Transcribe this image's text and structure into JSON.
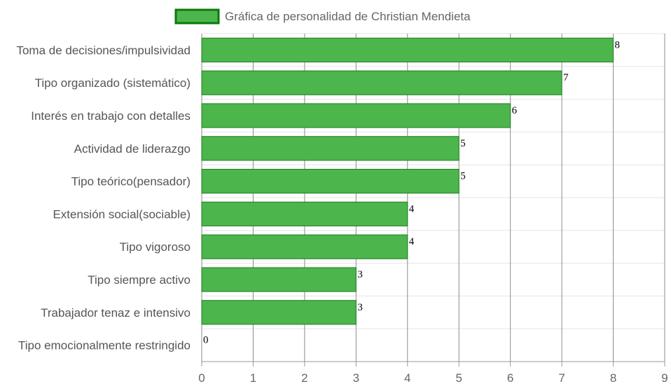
{
  "chart_data": {
    "type": "bar",
    "orientation": "horizontal",
    "legend": {
      "label": "Gráfica de personalidad de Christian Mendieta",
      "position": "top"
    },
    "categories": [
      "Toma de decisiones/impulsividad",
      "Tipo organizado (sistemático)",
      "Interés en trabajo con detalles",
      "Actividad de liderazgo",
      "Tipo teórico(pensador)",
      "Extensión social(sociable)",
      "Tipo vigoroso",
      "Tipo siempre activo",
      "Trabajador tenaz e intensivo",
      "Tipo emocionalmente restringido"
    ],
    "series": [
      {
        "name": "Gráfica de personalidad de Christian Mendieta",
        "values": [
          8,
          7,
          6,
          5,
          5,
          4,
          4,
          3,
          3,
          0
        ],
        "color": "#4cb54c",
        "border_color": "#1e7f1e"
      }
    ],
    "xlim": [
      0,
      9
    ],
    "x_ticks": [
      "0",
      "1",
      "2",
      "3",
      "4",
      "5",
      "6",
      "7",
      "8",
      "9"
    ],
    "grid": true,
    "data_labels": true
  }
}
